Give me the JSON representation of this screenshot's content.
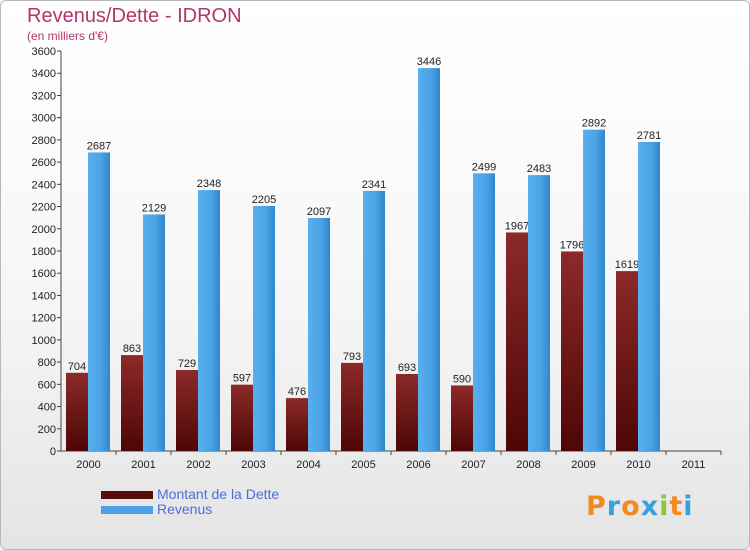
{
  "chart_data": {
    "type": "bar",
    "title": "Revenus/Dette - IDRON",
    "subtitle": "(en milliers d'€)",
    "categories": [
      "2000",
      "2001",
      "2002",
      "2003",
      "2004",
      "2005",
      "2006",
      "2007",
      "2008",
      "2009",
      "2010",
      "2011"
    ],
    "series": [
      {
        "name": "Montant de la Dette",
        "color": "#7a1414",
        "values": [
          704,
          863,
          729,
          597,
          476,
          793,
          693,
          590,
          1967,
          1796,
          1619,
          null
        ]
      },
      {
        "name": "Revenus",
        "color": "#4aa0e6",
        "values": [
          2687,
          2129,
          2348,
          2205,
          2097,
          2341,
          3446,
          2499,
          2483,
          2892,
          2781,
          null
        ]
      }
    ],
    "ylim": [
      0,
      3600
    ],
    "ytick_step": 200,
    "grid": false,
    "legend": "bottom-left"
  },
  "logo": {
    "text": "Proxiti",
    "letters": [
      "P",
      "r",
      "o",
      "x",
      "i",
      "t",
      "i"
    ],
    "colors": [
      "#f28a1e",
      "#3aa0dc",
      "#f28a1e",
      "#3aa0dc",
      "#8cc63f",
      "#f28a1e",
      "#3aa0dc"
    ]
  }
}
